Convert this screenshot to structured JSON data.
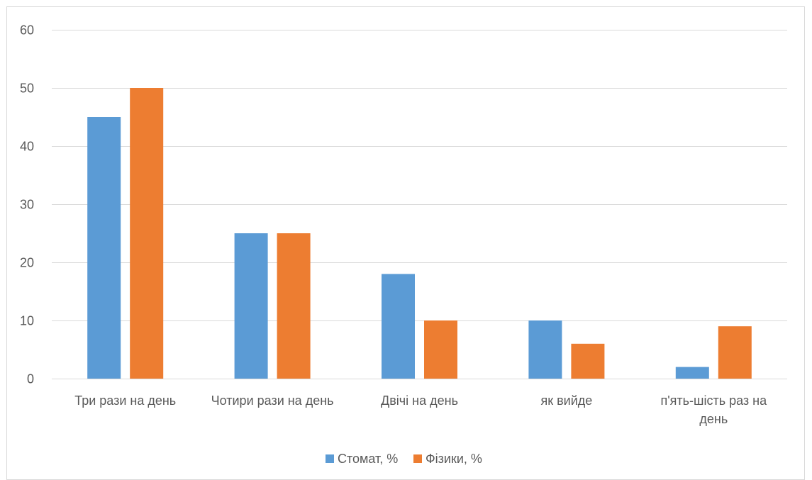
{
  "chart_data": {
    "type": "bar",
    "categories": [
      "Три рази на день",
      "Чотири рази на день",
      "Двічі на день",
      "як вийде",
      "п'ять-шість раз на день"
    ],
    "series": [
      {
        "name": "Стомат, %",
        "values": [
          45,
          25,
          18,
          10,
          2
        ],
        "color": "#5B9BD5"
      },
      {
        "name": "Фізики, %",
        "values": [
          50,
          25,
          10,
          6,
          9
        ],
        "color": "#ED7D31"
      }
    ],
    "title": "",
    "xlabel": "",
    "ylabel": "",
    "ylim": [
      0,
      60
    ],
    "yticks": [
      0,
      10,
      20,
      30,
      40,
      50,
      60
    ],
    "grid": true,
    "legend_position": "bottom",
    "gridline_color": "#D9D9D9",
    "text_color": "#595959",
    "border_color": "#D9D9D9"
  }
}
